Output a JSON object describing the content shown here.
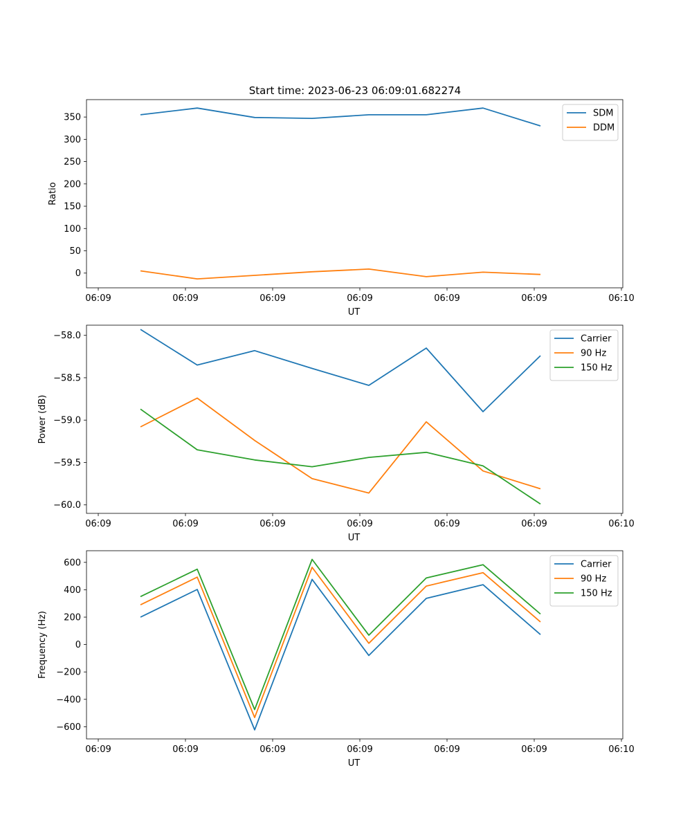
{
  "figure": {
    "suptitle": "Start time: 2023-06-23 06:09:01.682274"
  },
  "chart_data": [
    {
      "type": "line",
      "title": "Start time: 2023-06-23 06:09:01.682274",
      "xlabel": "UT",
      "ylabel": "Ratio",
      "x_tick_labels": [
        "06:09",
        "06:09",
        "06:09",
        "06:09",
        "06:09",
        "06:09",
        "06:10"
      ],
      "y_ticks": [
        0,
        50,
        100,
        150,
        200,
        250,
        300,
        350
      ],
      "ylim": [
        -33,
        389
      ],
      "legend": "upper right",
      "grid": false,
      "series": [
        {
          "name": "SDM",
          "color": "#1f77b4",
          "values": [
            355,
            370,
            349,
            347,
            355,
            355,
            370,
            330
          ]
        },
        {
          "name": "DDM",
          "color": "#ff7f0e",
          "values": [
            5,
            -13,
            -5,
            3,
            9,
            -8,
            2,
            -3
          ]
        }
      ]
    },
    {
      "type": "line",
      "title": "",
      "xlabel": "UT",
      "ylabel": "Power (dB)",
      "x_tick_labels": [
        "06:09",
        "06:09",
        "06:09",
        "06:09",
        "06:09",
        "06:09",
        "06:10"
      ],
      "y_ticks": [
        -60.0,
        -59.5,
        -59.0,
        -58.5,
        -58.0
      ],
      "y_tick_labels": [
        "−60.0",
        "−59.5",
        "−59.0",
        "−58.5",
        "−58.0"
      ],
      "ylim": [
        -60.1,
        -57.88
      ],
      "legend": "upper right",
      "grid": false,
      "series": [
        {
          "name": "Carrier",
          "color": "#1f77b4",
          "values": [
            -57.93,
            -58.35,
            -58.18,
            -58.39,
            -58.59,
            -58.15,
            -58.9,
            -58.24
          ]
        },
        {
          "name": "90 Hz",
          "color": "#ff7f0e",
          "values": [
            -59.08,
            -58.74,
            -59.24,
            -59.69,
            -59.86,
            -59.02,
            -59.6,
            -59.81
          ]
        },
        {
          "name": "150 Hz",
          "color": "#2ca02c",
          "values": [
            -58.87,
            -59.35,
            -59.47,
            -59.55,
            -59.44,
            -59.38,
            -59.54,
            -59.99
          ]
        }
      ]
    },
    {
      "type": "line",
      "title": "",
      "xlabel": "UT",
      "ylabel": "Frequency (Hz)",
      "x_tick_labels": [
        "06:09",
        "06:09",
        "06:09",
        "06:09",
        "06:09",
        "06:09",
        "06:10"
      ],
      "y_ticks": [
        -600,
        -400,
        -200,
        0,
        200,
        400,
        600
      ],
      "y_tick_labels": [
        "−600",
        "−400",
        "−200",
        "0",
        "200",
        "400",
        "600"
      ],
      "ylim": [
        -689,
        685
      ],
      "legend": "upper right",
      "grid": false,
      "series": [
        {
          "name": "Carrier",
          "color": "#1f77b4",
          "values": [
            200,
            402,
            -623,
            476,
            -80,
            337,
            437,
            73
          ]
        },
        {
          "name": "90 Hz",
          "color": "#ff7f0e",
          "values": [
            290,
            492,
            -533,
            564,
            9,
            427,
            525,
            165
          ]
        },
        {
          "name": "150 Hz",
          "color": "#2ca02c",
          "values": [
            350,
            550,
            -475,
            622,
            68,
            486,
            583,
            223
          ]
        }
      ]
    }
  ]
}
